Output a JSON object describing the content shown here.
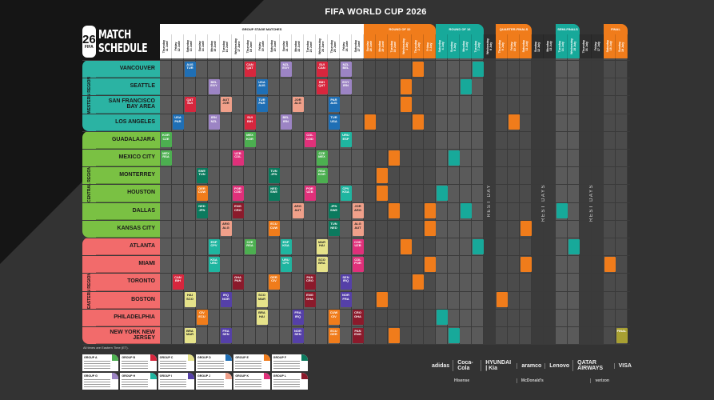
{
  "title": "FIFA WORLD CUP 2026",
  "logo": {
    "number": "26",
    "fifa": "FIFA",
    "line1": "MATCH",
    "line2": "SCHEDULE"
  },
  "phases": [
    {
      "label": "GROUP STAGE MATCHES",
      "start": 0,
      "count": 17,
      "color": "#ffffff"
    },
    {
      "label": "ROUND OF 32",
      "start": 17,
      "count": 6,
      "color": "#f07c1b"
    },
    {
      "label": "ROUND OF 16",
      "start": 23,
      "count": 4,
      "color": "#17a99a"
    },
    {
      "label": "QUARTER-FINALS",
      "start": 28,
      "count": 3,
      "color": "#f07c1b"
    },
    {
      "label": "SEMI-FINALS",
      "start": 33,
      "count": 2,
      "color": "#17a99a"
    },
    {
      "label": "FINAL",
      "start": 37,
      "count": 2,
      "color": "#f07c1b"
    }
  ],
  "days": [
    "Thursday\n11 June",
    "Friday\n12 June",
    "Saturday\n13 June",
    "Sunday\n14 June",
    "Monday\n15 June",
    "Tuesday\n16 June",
    "Wednesday\n17 June",
    "Thursday\n18 June",
    "Friday\n19 June",
    "Saturday\n20 June",
    "Sunday\n21 June",
    "Monday\n22 June",
    "Tuesday\n23 June",
    "Wednesday\n24 June",
    "Thursday\n25 June",
    "Friday\n26 June",
    "Saturday\n27 June",
    "Sunday\n28 June",
    "Monday\n29 June",
    "Tuesday\n30 June",
    "Wednesday\n1 July",
    "Thursday\n2 July",
    "Friday\n3 July",
    "Saturday\n4 July",
    "Sunday\n5 July",
    "Monday\n6 July",
    "Tuesday\n7 July",
    "Wednesday\n8 July",
    "Thursday\n9 July",
    "Friday\n10 July",
    "Saturday\n11 July",
    "Sunday\n12 July",
    "Monday\n13 July",
    "Tuesday\n14 July",
    "Wednesday\n15 July",
    "Thursday\n16 July",
    "Friday\n17 July",
    "Saturday\n18 July",
    "Sunday\n19 July"
  ],
  "rest_days": [
    {
      "label": "REST DAY",
      "col": 27
    },
    {
      "label": "REST DAYS",
      "col": 31.5
    },
    {
      "label": "REST DAYS",
      "col": 35.5
    }
  ],
  "regions": [
    {
      "label": "WESTERN REGION",
      "color": "#2bb3a3",
      "rows": 4
    },
    {
      "label": "CENTRAL REGION",
      "color": "#7ac143",
      "rows": 6
    },
    {
      "label": "EASTERN REGION",
      "color": "#f26b6b",
      "rows": 6
    }
  ],
  "group_colors": {
    "A": "#4caf50",
    "B": "#d7263d",
    "C": "#e6e38a",
    "D": "#1f6fb5",
    "E": "#f07c1b",
    "F": "#0b7a5e",
    "G": "#9c84c4",
    "H": "#1fb5a0",
    "I": "#5540a8",
    "J": "#f0a08a",
    "K": "#e0307a",
    "L": "#8b1a2b",
    "KO_ORANGE": "#f07c1b",
    "KO_TEAL": "#17a99a",
    "FINAL": "#a8a032"
  },
  "cities": [
    {
      "name": "VANCOUVER",
      "matches": [
        {
          "col": 2,
          "teams": [
            "AUS",
            "TUR"
          ],
          "g": "D"
        },
        {
          "col": 7,
          "teams": [
            "CAN",
            "QAT"
          ],
          "g": "B"
        },
        {
          "col": 10,
          "teams": [
            "NZL",
            "EGY"
          ],
          "g": "G"
        },
        {
          "col": 13,
          "teams": [
            "SUI",
            "CAN"
          ],
          "g": "B"
        },
        {
          "col": 15,
          "teams": [
            "NZL",
            "BEL"
          ],
          "g": "G"
        },
        {
          "col": 21,
          "g": "KO_ORANGE"
        },
        {
          "col": 26,
          "g": "KO_TEAL"
        }
      ]
    },
    {
      "name": "SEATTLE",
      "matches": [
        {
          "col": 4,
          "teams": [
            "BEL",
            "EGY"
          ],
          "g": "G"
        },
        {
          "col": 8,
          "teams": [
            "USA",
            "AUS"
          ],
          "g": "D"
        },
        {
          "col": 13,
          "teams": [
            "BIH",
            "QAT"
          ],
          "g": "B"
        },
        {
          "col": 15,
          "teams": [
            "EGY",
            "IRN"
          ],
          "g": "G"
        },
        {
          "col": 20,
          "g": "KO_ORANGE"
        },
        {
          "col": 25,
          "g": "KO_TEAL"
        }
      ]
    },
    {
      "name": "SAN FRANCISCO BAY AREA",
      "matches": [
        {
          "col": 2,
          "teams": [
            "QAT",
            "SUI"
          ],
          "g": "B"
        },
        {
          "col": 5,
          "teams": [
            "AUT",
            "JOR"
          ],
          "g": "J"
        },
        {
          "col": 8,
          "teams": [
            "TUR",
            "PAR"
          ],
          "g": "D"
        },
        {
          "col": 11,
          "teams": [
            "JOR",
            "ALG"
          ],
          "g": "J"
        },
        {
          "col": 14,
          "teams": [
            "PAR",
            "AUS"
          ],
          "g": "D"
        },
        {
          "col": 20,
          "g": "KO_ORANGE"
        }
      ]
    },
    {
      "name": "LOS ANGELES",
      "matches": [
        {
          "col": 1,
          "teams": [
            "USA",
            "PAR"
          ],
          "g": "D"
        },
        {
          "col": 4,
          "teams": [
            "IRN",
            "NZL"
          ],
          "g": "G"
        },
        {
          "col": 7,
          "teams": [
            "SUI",
            "BIH"
          ],
          "g": "B"
        },
        {
          "col": 10,
          "teams": [
            "BEL",
            "IRN"
          ],
          "g": "G"
        },
        {
          "col": 14,
          "teams": [
            "TUR",
            "USA"
          ],
          "g": "D"
        },
        {
          "col": 17,
          "g": "KO_ORANGE"
        },
        {
          "col": 21,
          "g": "KO_ORANGE"
        },
        {
          "col": 29,
          "g": "KO_ORANGE"
        }
      ]
    },
    {
      "name": "GUADALAJARA",
      "matches": [
        {
          "col": 0,
          "teams": [
            "KOR",
            "CZE"
          ],
          "g": "A"
        },
        {
          "col": 7,
          "teams": [
            "MEX",
            "KOR"
          ],
          "g": "A"
        },
        {
          "col": 12,
          "teams": [
            "COL",
            "COD"
          ],
          "g": "K"
        },
        {
          "col": 15,
          "teams": [
            "URU",
            "ESP"
          ],
          "g": "H"
        }
      ]
    },
    {
      "name": "MEXICO CITY",
      "matches": [
        {
          "col": 0,
          "teams": [
            "MEX",
            "RSA"
          ],
          "g": "A"
        },
        {
          "col": 6,
          "teams": [
            "UZB",
            "COL"
          ],
          "g": "K"
        },
        {
          "col": 13,
          "teams": [
            "CZE",
            "MEX"
          ],
          "g": "A"
        },
        {
          "col": 19,
          "g": "KO_ORANGE"
        },
        {
          "col": 24,
          "g": "KO_TEAL"
        }
      ]
    },
    {
      "name": "MONTERREY",
      "matches": [
        {
          "col": 3,
          "teams": [
            "SWE",
            "TUN"
          ],
          "g": "F"
        },
        {
          "col": 9,
          "teams": [
            "TUN",
            "JPN"
          ],
          "g": "F"
        },
        {
          "col": 13,
          "teams": [
            "RSA",
            "KOR"
          ],
          "g": "A"
        },
        {
          "col": 18,
          "g": "KO_ORANGE"
        }
      ]
    },
    {
      "name": "HOUSTON",
      "matches": [
        {
          "col": 3,
          "teams": [
            "GER",
            "CUW"
          ],
          "g": "E"
        },
        {
          "col": 6,
          "teams": [
            "POR",
            "COD"
          ],
          "g": "K"
        },
        {
          "col": 9,
          "teams": [
            "NED",
            "SWE"
          ],
          "g": "F"
        },
        {
          "col": 12,
          "teams": [
            "POR",
            "UZB"
          ],
          "g": "K"
        },
        {
          "col": 15,
          "teams": [
            "CPV",
            "KSA"
          ],
          "g": "H"
        },
        {
          "col": 18,
          "g": "KO_ORANGE"
        },
        {
          "col": 23,
          "g": "KO_TEAL"
        }
      ]
    },
    {
      "name": "DALLAS",
      "matches": [
        {
          "col": 3,
          "teams": [
            "NED",
            "JPN"
          ],
          "g": "F"
        },
        {
          "col": 6,
          "teams": [
            "ENG",
            "CRO"
          ],
          "g": "L"
        },
        {
          "col": 11,
          "teams": [
            "ARG",
            "AUT"
          ],
          "g": "J"
        },
        {
          "col": 14,
          "teams": [
            "JPN",
            "SWE"
          ],
          "g": "F"
        },
        {
          "col": 16,
          "teams": [
            "JOR",
            "ARG"
          ],
          "g": "J"
        },
        {
          "col": 19,
          "g": "KO_ORANGE"
        },
        {
          "col": 22,
          "g": "KO_ORANGE"
        },
        {
          "col": 25,
          "g": "KO_TEAL"
        },
        {
          "col": 33,
          "g": "KO_TEAL"
        }
      ]
    },
    {
      "name": "KANSAS CITY",
      "matches": [
        {
          "col": 5,
          "teams": [
            "ARG",
            "ALG"
          ],
          "g": "J"
        },
        {
          "col": 9,
          "teams": [
            "ECU",
            "CUW"
          ],
          "g": "E"
        },
        {
          "col": 14,
          "teams": [
            "TUN",
            "NED"
          ],
          "g": "F"
        },
        {
          "col": 16,
          "teams": [
            "ALG",
            "AUT"
          ],
          "g": "J"
        },
        {
          "col": 22,
          "g": "KO_ORANGE"
        },
        {
          "col": 30,
          "g": "KO_ORANGE"
        }
      ]
    },
    {
      "name": "ATLANTA",
      "matches": [
        {
          "col": 4,
          "teams": [
            "ESP",
            "CPV"
          ],
          "g": "H"
        },
        {
          "col": 7,
          "teams": [
            "CZE",
            "RSA"
          ],
          "g": "A"
        },
        {
          "col": 10,
          "teams": [
            "ESP",
            "KSA"
          ],
          "g": "H"
        },
        {
          "col": 13,
          "teams": [
            "MAR",
            "HAI"
          ],
          "g": "C"
        },
        {
          "col": 16,
          "teams": [
            "COD",
            "UZB"
          ],
          "g": "K"
        },
        {
          "col": 20,
          "g": "KO_ORANGE"
        },
        {
          "col": 26,
          "g": "KO_TEAL"
        },
        {
          "col": 34,
          "g": "KO_TEAL"
        }
      ]
    },
    {
      "name": "MIAMI",
      "matches": [
        {
          "col": 4,
          "teams": [
            "KSA",
            "URU"
          ],
          "g": "H"
        },
        {
          "col": 10,
          "teams": [
            "URU",
            "CPV"
          ],
          "g": "H"
        },
        {
          "col": 13,
          "teams": [
            "SCO",
            "BRA"
          ],
          "g": "C"
        },
        {
          "col": 16,
          "teams": [
            "COL",
            "POR"
          ],
          "g": "K"
        },
        {
          "col": 22,
          "g": "KO_ORANGE"
        },
        {
          "col": 30,
          "g": "KO_ORANGE"
        },
        {
          "col": 37,
          "g": "KO_ORANGE"
        }
      ]
    },
    {
      "name": "TORONTO",
      "matches": [
        {
          "col": 1,
          "teams": [
            "CAN",
            "BIH"
          ],
          "g": "B"
        },
        {
          "col": 6,
          "teams": [
            "GHA",
            "PAN"
          ],
          "g": "L"
        },
        {
          "col": 9,
          "teams": [
            "GER",
            "CIV"
          ],
          "g": "E"
        },
        {
          "col": 12,
          "teams": [
            "PAN",
            "CRO"
          ],
          "g": "L"
        },
        {
          "col": 15,
          "teams": [
            "SEN",
            "IRQ"
          ],
          "g": "I"
        },
        {
          "col": 21,
          "g": "KO_ORANGE"
        }
      ]
    },
    {
      "name": "BOSTON",
      "matches": [
        {
          "col": 2,
          "teams": [
            "HAI",
            "SCO"
          ],
          "g": "C"
        },
        {
          "col": 5,
          "teams": [
            "IRQ",
            "NOR"
          ],
          "g": "I"
        },
        {
          "col": 8,
          "teams": [
            "SCO",
            "MAR"
          ],
          "g": "C"
        },
        {
          "col": 12,
          "teams": [
            "ENG",
            "GHA"
          ],
          "g": "L"
        },
        {
          "col": 15,
          "teams": [
            "NOR",
            "FRA"
          ],
          "g": "I"
        },
        {
          "col": 18,
          "g": "KO_ORANGE"
        },
        {
          "col": 28,
          "g": "KO_ORANGE"
        }
      ]
    },
    {
      "name": "PHILADELPHIA",
      "matches": [
        {
          "col": 3,
          "teams": [
            "CIV",
            "ECU"
          ],
          "g": "E"
        },
        {
          "col": 8,
          "teams": [
            "BRA",
            "HAI"
          ],
          "g": "C"
        },
        {
          "col": 11,
          "teams": [
            "FRA",
            "IRQ"
          ],
          "g": "I"
        },
        {
          "col": 14,
          "teams": [
            "CUW",
            "CIV"
          ],
          "g": "E"
        },
        {
          "col": 16,
          "teams": [
            "CRO",
            "GHA"
          ],
          "g": "L"
        },
        {
          "col": 23,
          "g": "KO_TEAL"
        }
      ]
    },
    {
      "name": "NEW YORK NEW JERSEY",
      "matches": [
        {
          "col": 2,
          "teams": [
            "BRA",
            "MAR"
          ],
          "g": "C"
        },
        {
          "col": 5,
          "teams": [
            "FRA",
            "SEN"
          ],
          "g": "I"
        },
        {
          "col": 11,
          "teams": [
            "NOR",
            "SEN"
          ],
          "g": "I"
        },
        {
          "col": 14,
          "teams": [
            "ECU",
            "GER"
          ],
          "g": "E"
        },
        {
          "col": 16,
          "teams": [
            "PAN",
            "ENG"
          ],
          "g": "L"
        },
        {
          "col": 19,
          "g": "KO_ORANGE"
        },
        {
          "col": 24,
          "g": "KO_TEAL"
        },
        {
          "col": 38,
          "teams": [
            "FINAL"
          ],
          "g": "FINAL"
        }
      ]
    }
  ],
  "note": "All times are Eastern Time (ET).",
  "groups": [
    "A",
    "B",
    "C",
    "D",
    "E",
    "F",
    "G",
    "H",
    "I",
    "J",
    "K",
    "L"
  ],
  "group_label_prefix": "GROUP",
  "sponsors_row1": [
    "adidas",
    "Coca-Cola",
    "HYUNDAI | Kia",
    "aramco",
    "Lenovo",
    "QATAR AIRWAYS",
    "VISA"
  ],
  "sponsors_row2": [
    "Hisense",
    "McDonald's",
    "verizon"
  ]
}
